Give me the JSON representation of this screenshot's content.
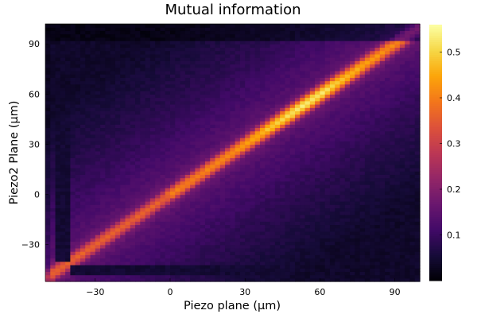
{
  "chart_data": {
    "type": "heatmap",
    "title": "Mutual information",
    "xlabel": "Piezo plane (µm)",
    "ylabel": "Piezo2 Plane (µm)",
    "xlim": [
      -50,
      100
    ],
    "ylim": [
      -52,
      102
    ],
    "xticks": [
      -30,
      0,
      30,
      60,
      90
    ],
    "yticks": [
      -30,
      0,
      30,
      60,
      90
    ],
    "colorbar": {
      "range": [
        0,
        0.56
      ],
      "ticks": [
        0.1,
        0.2,
        0.3,
        0.4,
        0.5
      ],
      "colormap": "inferno"
    },
    "grid_step": 2,
    "pattern": "diagonal band (x = y) with peak ~0.55 near 50–65 µm, background ~0.08–0.15, dark low-value strips near x ≈ -43 and y ≈ -45 and near the top edge y ≈ 95–100"
  }
}
